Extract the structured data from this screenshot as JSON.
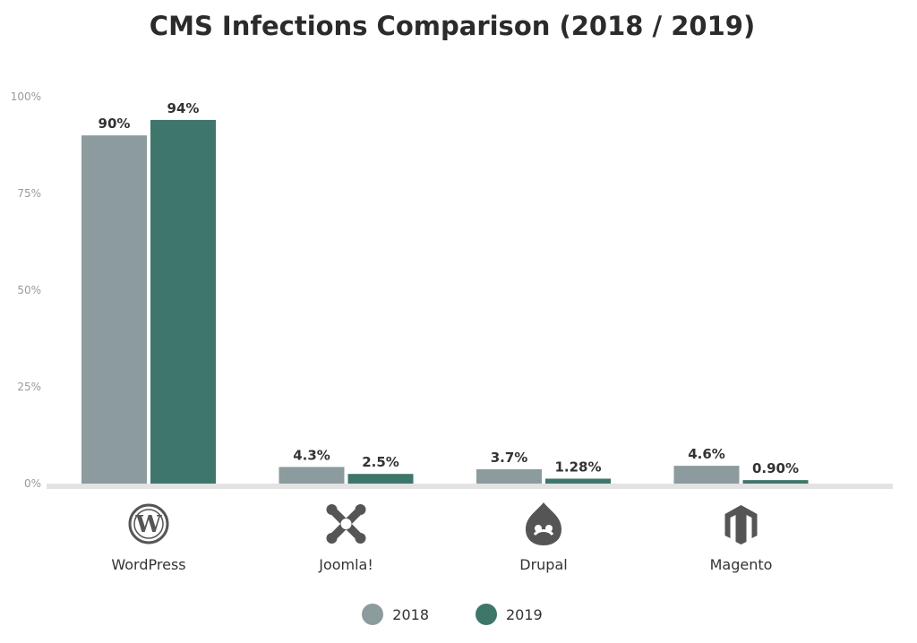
{
  "chart_data": {
    "type": "bar",
    "title": "CMS Infections Comparison (2018 / 2019)",
    "categories": [
      "WordPress",
      "Joomla!",
      "Drupal",
      "Magento"
    ],
    "category_icons": [
      "wordpress-icon",
      "joomla-icon",
      "drupal-icon",
      "magento-icon"
    ],
    "series": [
      {
        "name": "2018",
        "values": [
          90,
          4.3,
          3.7,
          4.6
        ],
        "labels": [
          "90%",
          "4.3%",
          "3.7%",
          "4.6%"
        ],
        "color": "#8c9b9d"
      },
      {
        "name": "2019",
        "values": [
          94,
          2.5,
          1.28,
          0.9
        ],
        "labels": [
          "94%",
          "2.5%",
          "1.28%",
          "0.90%"
        ],
        "color": "#3f766b"
      }
    ],
    "ylim": [
      0,
      100
    ],
    "yticks": [
      0,
      25,
      50,
      75,
      100
    ],
    "ytick_labels": [
      "0%",
      "25%",
      "50%",
      "75%",
      "100%"
    ],
    "grid": false,
    "legend": "bottom-center",
    "xlabel": "",
    "ylabel": ""
  }
}
